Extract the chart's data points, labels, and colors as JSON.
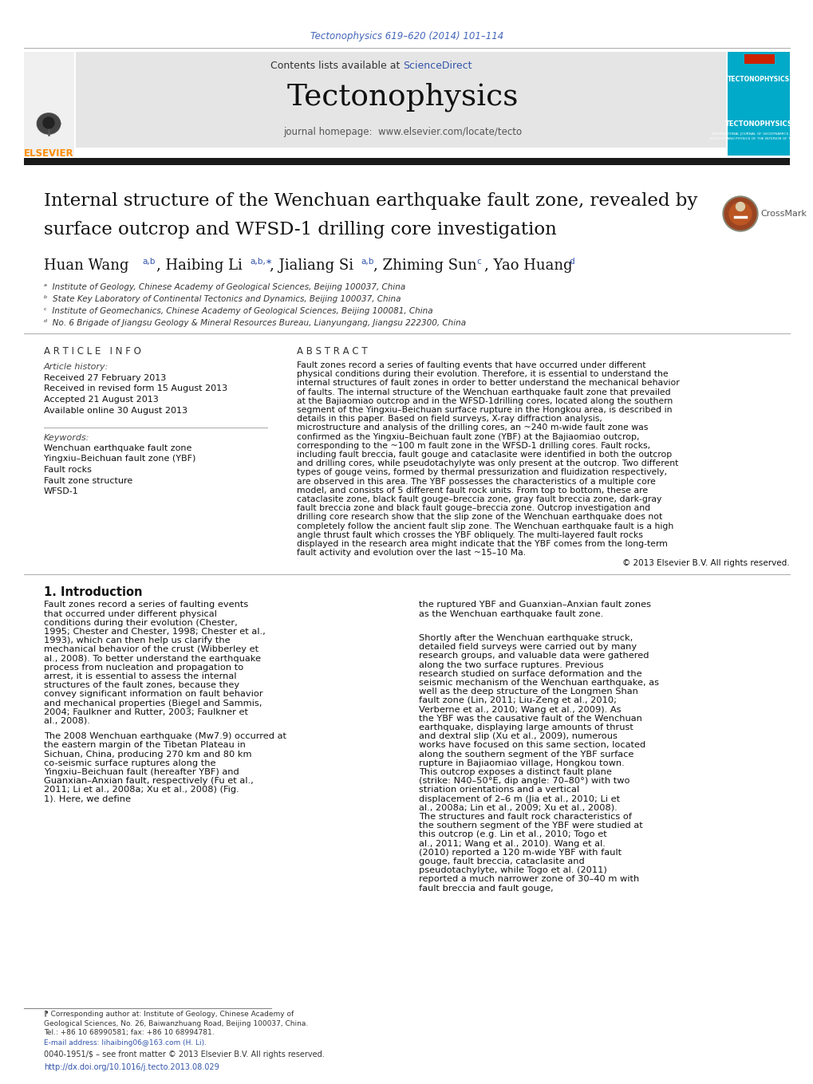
{
  "page_bg": "#ffffff",
  "header_ref": "Tectonophysics 619–620 (2014) 101–114",
  "header_ref_color": "#4466bb",
  "header_box_bg": "#e5e5e5",
  "sciencedirect_color": "#3355aa",
  "elsevier_orange": "#ff8c00",
  "tecto_blue": "#00aac8",
  "thick_bar": "#1a1a1a",
  "title_line1": "Internal structure of the Wenchuan earthquake fault zone, revealed by",
  "title_line2": "surface outcrop and WFSD-1 drilling core investigation",
  "affil_a": "ᵃ  Institute of Geology, Chinese Academy of Geological Sciences, Beijing 100037, China",
  "affil_b": "ᵇ  State Key Laboratory of Continental Tectonics and Dynamics, Beijing 100037, China",
  "affil_c": "ᶜ  Institute of Geomechanics, Chinese Academy of Geological Sciences, Beijing 100081, China",
  "affil_d": "ᵈ  No. 6 Brigade of Jiangsu Geology & Mineral Resources Bureau, Lianyungang, Jiangsu 222300, China",
  "art_info_title": "A R T I C L E   I N F O",
  "art_history_label": "Article history:",
  "art_history": [
    "Received 27 February 2013",
    "Received in revised form 15 August 2013",
    "Accepted 21 August 2013",
    "Available online 30 August 2013"
  ],
  "keywords_label": "Keywords:",
  "keywords": [
    "Wenchuan earthquake fault zone",
    "Yingxiu–Beichuan fault zone (YBF)",
    "Fault rocks",
    "Fault zone structure",
    "WFSD-1"
  ],
  "abstract_title": "A B S T R A C T",
  "abstract_text": "Fault zones record a series of faulting events that have occurred under different physical conditions during their evolution. Therefore, it is essential to understand the internal structures of fault zones in order to better understand the mechanical behavior of faults. The internal structure of the Wenchuan earthquake fault zone that prevailed at the Bajiaomiao outcrop and in the WFSD-1drilling cores, located along the southern segment of the Yingxiu–Beichuan surface rupture in the Hongkou area, is described in details in this paper. Based on field surveys, X-ray diffraction analysis, microstructure and analysis of the drilling cores, an ~240 m-wide fault zone was confirmed as the Yingxiu–Beichuan fault zone (YBF) at the Bajiaomiao outcrop, corresponding to the ~100 m fault zone in the WFSD-1 drilling cores. Fault rocks, including fault breccia, fault gouge and cataclasite were identified in both the outcrop and drilling cores, while pseudotachylyte was only present at the outcrop. Two different types of gouge veins, formed by thermal pressurization and fluidization respectively, are observed in this area. The YBF possesses the characteristics of a multiple core model, and consists of 5 different fault rock units. From top to bottom, these are cataclasite zone, black fault gouge–breccia zone, gray fault breccia zone, dark-gray fault breccia zone and black fault gouge–breccia zone. Outcrop investigation and drilling core research show that the slip zone of the Wenchuan earthquake does not completely follow the ancient fault slip zone. The Wenchuan earthquake fault is a high angle thrust fault which crosses the YBF obliquely. The multi-layered fault rocks displayed in the research area might indicate that the YBF comes from the long-term fault activity and evolution over the last ~15–10 Ma.",
  "copyright": "© 2013 Elsevier B.V. All rights reserved.",
  "sec1_title": "1. Introduction",
  "intro_p1": "Fault zones record a series of faulting events that occurred under different physical conditions during their evolution (Chester, 1995; Chester and Chester, 1998; Chester et al., 1993), which can then help us clarify the mechanical behavior of the crust (Wibberley et al., 2008). To better understand the earthquake process from nucleation and propagation to arrest, it is essential to assess the internal structures of the fault zones, because they convey significant information on fault behavior and mechanical properties (Biegel and Sammis, 2004; Faulkner and Rutter, 2003; Faulkner et al., 2008).",
  "intro_p2": "The 2008 Wenchuan earthquake (Mw7.9) occurred at the eastern margin of the Tibetan Plateau in Sichuan, China, producing 270 km and 80 km co-seismic surface ruptures along the Yingxiu–Beichuan fault (hereafter YBF) and Guanxian–Anxian fault, respectively (Fu et al., 2011; Li et al., 2008a; Xu et al., 2008) (Fig. 1). Here, we define",
  "intro_col2_p1": "the ruptured YBF and Guanxian–Anxian fault zones as the Wenchuan earthquake fault zone.",
  "intro_col2_p2": "Shortly after the Wenchuan earthquake struck, detailed field surveys were carried out by many research groups, and valuable data were gathered along the two surface ruptures. Previous research studied on surface deformation and the seismic mechanism of the Wenchuan earthquake, as well as the deep structure of the Longmen Shan fault zone (Lin, 2011; Liu-Zeng et al., 2010; Verberne et al., 2010; Wang et al., 2009). As the YBF was the causative fault of the Wenchuan earthquake, displaying large amounts of thrust and dextral slip (Xu et al., 2009), numerous works have focused on this same section, located along the southern segment of the YBF surface rupture in Bajiaomiao village, Hongkou town. This outcrop exposes a distinct fault plane (strike: N40–50°E, dip angle: 70–80°) with two striation orientations and a vertical displacement of 2–6 m (Jia et al., 2010; Li et al., 2008a; Lin et al., 2009; Xu et al., 2008). The structures and fault rock characteristics of the southern segment of the YBF were studied at this outcrop (e.g. Lin et al., 2010; Togo et al., 2011; Wang et al., 2010). Wang et al. (2010) reported a 120 m-wide YBF with fault gouge, fault breccia, cataclasite and pseudotachylyte, while Togo et al. (2011) reported a much narrower zone of 30–40 m with fault breccia and fault gouge,",
  "footnote": "⁋ Corresponding author at: Institute of Geology, Chinese Academy of Geological Sciences, No. 26, Baiwanzhuang Road, Beijing 100037, China. Tel.: +86 10 68990581; fax: +86 10 68994781.",
  "footnote_email": "E-mail address: lihaibing06@163.com (H. Li).",
  "footer1": "0040-1951/$ – see front matter © 2013 Elsevier B.V. All rights reserved.",
  "footer2": "http://dx.doi.org/10.1016/j.tecto.2013.08.029"
}
